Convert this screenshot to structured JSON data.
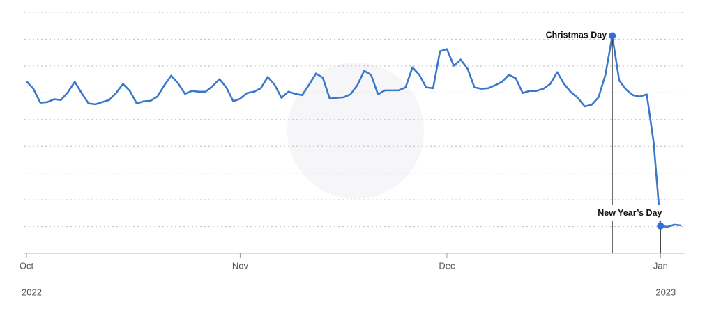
{
  "chart_data": {
    "type": "line",
    "xlim": [
      0,
      95
    ],
    "ylim": [
      0,
      90
    ],
    "grid": true,
    "xticks": [
      {
        "value": 0,
        "label": "Oct"
      },
      {
        "value": 31,
        "label": "Nov"
      },
      {
        "value": 61,
        "label": "Dec"
      },
      {
        "value": 92,
        "label": "Jan"
      }
    ],
    "year_ticks": [
      {
        "value": 0,
        "label": "2022"
      },
      {
        "value": 92,
        "label": "2023"
      }
    ],
    "series": [
      {
        "color": "#3a78c9",
        "values": [
          64.3,
          61.5,
          56.3,
          56.5,
          57.6,
          57.3,
          60.2,
          64.1,
          59.9,
          56.0,
          55.7,
          56.5,
          57.3,
          59.9,
          63.3,
          60.7,
          56.0,
          56.8,
          57.0,
          58.6,
          62.8,
          66.4,
          63.5,
          59.6,
          60.7,
          60.4,
          60.4,
          62.5,
          65.1,
          62.0,
          56.8,
          57.8,
          59.9,
          60.4,
          61.7,
          65.9,
          63.0,
          58.1,
          60.4,
          59.6,
          59.1,
          63.0,
          67.2,
          65.6,
          57.8,
          58.1,
          58.3,
          59.4,
          62.8,
          68.2,
          66.7,
          59.4,
          60.9,
          60.9,
          60.9,
          62.0,
          69.5,
          66.7,
          62.0,
          61.7,
          75.5,
          76.3,
          70.1,
          72.4,
          69.0,
          62.0,
          61.5,
          61.7,
          62.8,
          64.1,
          66.7,
          65.4,
          59.9,
          60.7,
          60.7,
          61.5,
          63.3,
          67.7,
          63.3,
          60.2,
          58.1,
          54.9,
          55.5,
          58.3,
          66.7,
          81.3,
          64.6,
          61.2,
          59.1,
          58.6,
          59.4,
          41.4,
          10.2,
          9.9,
          10.7,
          10.4
        ]
      }
    ],
    "annotations": [
      {
        "label": "Christmas Day",
        "x": 85
      },
      {
        "label": "New Year’s Day",
        "x": 92
      }
    ]
  }
}
